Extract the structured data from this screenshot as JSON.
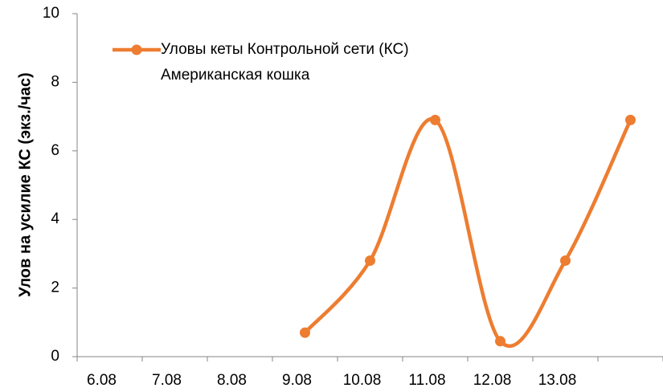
{
  "chart_data": {
    "type": "line",
    "y_label": "Улов на усилие КС (экз./час)",
    "categories": [
      "6.08",
      "7.08",
      "8.08",
      "9.08",
      "10.08",
      "11.08",
      "12.08",
      "13.08",
      null
    ],
    "series": [
      {
        "name": "Уловы кеты Контрольной сети (КС) Американская кошка",
        "color": "#ED7D31",
        "values": [
          null,
          null,
          null,
          0.7,
          2.8,
          6.9,
          0.45,
          2.8,
          6.9
        ]
      }
    ],
    "ylim": [
      0,
      10
    ],
    "yticks": [
      0,
      2,
      4,
      6,
      8,
      10
    ],
    "grid": false,
    "smooth": true,
    "legend": "top-left"
  }
}
